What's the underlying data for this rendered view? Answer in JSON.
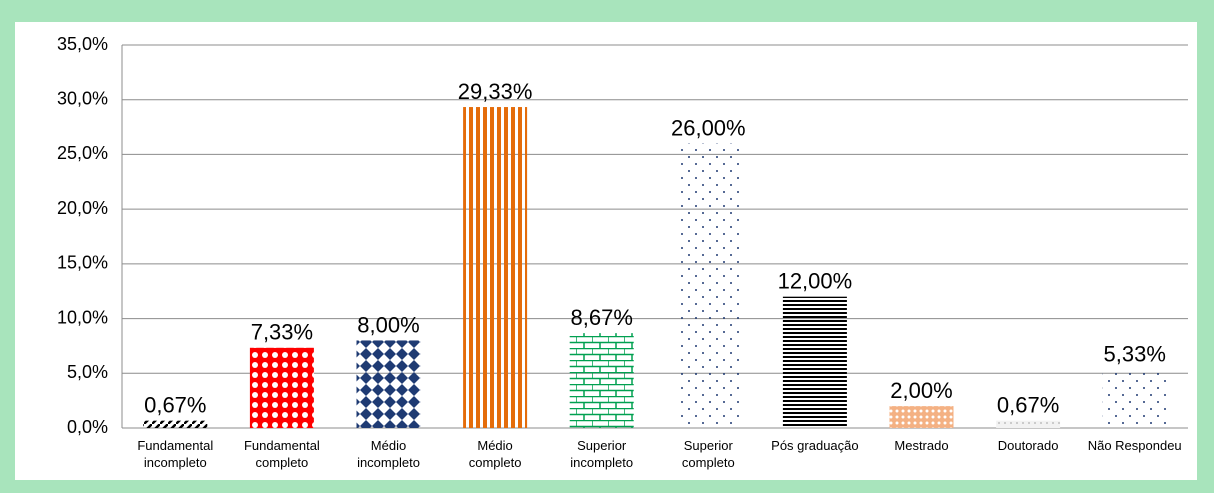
{
  "chart_data": {
    "type": "bar",
    "categories": [
      "Fundamental\nincompleto",
      "Fundamental\ncompleto",
      "Médio\nincompleto",
      "Médio\ncompleto",
      "Superior\nincompleto",
      "Superior\ncompleto",
      "Pós graduação",
      "Mestrado",
      "Doutorado",
      "Não Respondeu"
    ],
    "values": [
      0.67,
      7.33,
      8.0,
      29.33,
      8.67,
      26.0,
      12.0,
      2.0,
      0.67,
      5.33
    ],
    "value_labels": [
      "0,67%",
      "7,33%",
      "8,00%",
      "29,33%",
      "8,67%",
      "26,00%",
      "12,00%",
      "2,00%",
      "0,67%",
      "5,33%"
    ],
    "colors": [
      "#000000",
      "#ff0000",
      "#1f3b73",
      "#e46c0a",
      "#00a050",
      "#1f3b73",
      "#000000",
      "#f4b183",
      "#bfbfbf",
      "#1f3b73"
    ],
    "ylim": [
      0,
      35
    ],
    "yticks": [
      {
        "value": 0,
        "label": "0,0%"
      },
      {
        "value": 5,
        "label": "5,0%"
      },
      {
        "value": 10,
        "label": "10,0%"
      },
      {
        "value": 15,
        "label": "15,0%"
      },
      {
        "value": 20,
        "label": "20,0%"
      },
      {
        "value": 25,
        "label": "25,0%"
      },
      {
        "value": 30,
        "label": "30,0%"
      },
      {
        "value": 35,
        "label": "35,0%"
      }
    ],
    "grid": true
  }
}
